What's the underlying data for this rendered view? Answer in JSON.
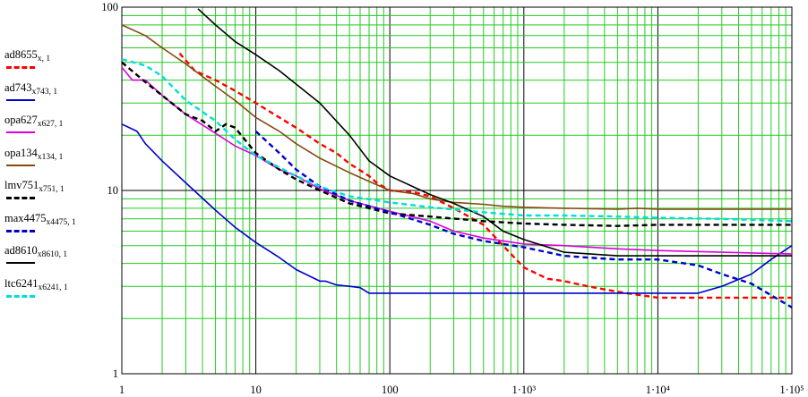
{
  "chart_data": {
    "type": "line",
    "x_scale": "log",
    "y_scale": "log",
    "xlim": [
      1,
      100000
    ],
    "ylim": [
      1,
      100
    ],
    "grid": true,
    "grid_color": "#22cc22",
    "legend_position": "left",
    "x_tick_labels": [
      {
        "value": 1,
        "label": "1"
      },
      {
        "value": 10,
        "label": "10"
      },
      {
        "value": 100,
        "label": "100"
      },
      {
        "value": 1000,
        "label": "1·10³"
      },
      {
        "value": 10000,
        "label": "1·10⁴"
      },
      {
        "value": 100000,
        "label": "1·10⁵"
      }
    ],
    "y_tick_labels": [
      {
        "value": 100,
        "label": "100"
      },
      {
        "value": 10,
        "label": "10"
      },
      {
        "value": 1,
        "label": "1"
      }
    ],
    "series": [
      {
        "name": "ad8655",
        "subscript": "x, 1",
        "color": "#ff0000",
        "dash": true,
        "x": [
          2.7,
          3.5,
          5,
          7,
          10,
          15,
          20,
          30,
          40,
          50,
          70,
          80,
          100,
          150,
          200,
          300,
          500,
          700,
          1000,
          1500,
          2000,
          3000,
          5000,
          7000,
          10000,
          20000,
          50000,
          100000
        ],
        "y": [
          56,
          45,
          40,
          35,
          30,
          25,
          22,
          18,
          16,
          14,
          12,
          11,
          10,
          9.8,
          9.3,
          8,
          6.5,
          5,
          3.8,
          3.3,
          3.2,
          3.0,
          2.8,
          2.7,
          2.6,
          2.6,
          2.6,
          2.6
        ]
      },
      {
        "name": "ad743",
        "subscript": "x743, 1",
        "color": "#0000cc",
        "dash": false,
        "x": [
          1,
          1.3,
          1.5,
          2,
          3,
          5,
          7,
          10,
          15,
          20,
          30,
          33,
          40,
          50,
          60,
          70,
          80,
          100,
          200,
          500,
          1000,
          3000,
          10000,
          20000,
          30000,
          50000,
          70000,
          100000
        ],
        "y": [
          23,
          21,
          18,
          14.5,
          11,
          7.8,
          6.3,
          5.2,
          4.3,
          3.7,
          3.2,
          3.2,
          3.05,
          3.0,
          2.95,
          2.75,
          2.75,
          2.75,
          2.75,
          2.75,
          2.75,
          2.75,
          2.75,
          2.75,
          3.0,
          3.5,
          4.2,
          5.0
        ]
      },
      {
        "name": "opa627",
        "subscript": "x627, 1",
        "color": "#dd00dd",
        "dash": false,
        "x": [
          1,
          1.2,
          1.5,
          2,
          3,
          5,
          7,
          10,
          15,
          20,
          30,
          50,
          100,
          200,
          300,
          500,
          1000,
          2000,
          5000,
          10000,
          30000,
          100000
        ],
        "y": [
          47,
          40,
          40,
          33,
          26,
          20.5,
          17.5,
          15.5,
          13,
          12,
          10.2,
          8.8,
          7.7,
          6.8,
          6.0,
          5.5,
          5.1,
          5.0,
          4.8,
          4.7,
          4.6,
          4.5
        ]
      },
      {
        "name": "opa134",
        "subscript": "x134, 1",
        "color": "#8b4513",
        "dash": false,
        "x": [
          1,
          1.5,
          2,
          3,
          5,
          7,
          10,
          15,
          20,
          30,
          50,
          70,
          100,
          150,
          200,
          300,
          500,
          700,
          1000,
          2000,
          5000,
          7000,
          10000,
          30000,
          100000
        ],
        "y": [
          80,
          70,
          60,
          49,
          37,
          31,
          25,
          21,
          18,
          15,
          12.5,
          11.2,
          10,
          9.6,
          9,
          8.6,
          8.4,
          8.2,
          8.1,
          8.0,
          7.9,
          8.0,
          7.9,
          7.9,
          7.9
        ]
      },
      {
        "name": "lmv751",
        "subscript": "x751, 1",
        "color": "#000000",
        "dash": true,
        "x": [
          1,
          1.5,
          2,
          3,
          4,
          5,
          6,
          7,
          10,
          15,
          20,
          30,
          50,
          100,
          200,
          500,
          1000,
          2000,
          5000,
          10000,
          30000,
          100000
        ],
        "y": [
          50,
          39,
          33,
          26,
          24,
          21,
          23,
          22,
          16,
          13,
          11.5,
          10,
          8.5,
          7.5,
          7.2,
          6.8,
          6.6,
          6.5,
          6.4,
          6.5,
          6.5,
          6.5
        ]
      },
      {
        "name": "max4475",
        "subscript": "x4475, 1",
        "color": "#0000cc",
        "dash": true,
        "x": [
          10,
          15,
          20,
          30,
          50,
          70,
          100,
          200,
          300,
          500,
          1000,
          2000,
          3000,
          5000,
          7000,
          10000,
          20000,
          30000,
          50000,
          100000
        ],
        "y": [
          21,
          16,
          13,
          10.5,
          8.8,
          8.2,
          7.6,
          6.5,
          5.8,
          5.3,
          4.9,
          4.4,
          4.3,
          4.2,
          4.2,
          4.2,
          3.9,
          3.5,
          3.1,
          2.3
        ]
      },
      {
        "name": "ad8610",
        "subscript": "x8610, 1",
        "color": "#000000",
        "dash": false,
        "x": [
          3.7,
          5,
          7,
          10,
          15,
          20,
          30,
          50,
          70,
          100,
          200,
          300,
          500,
          700,
          1000,
          2000,
          5000,
          10000,
          30000,
          100000
        ],
        "y": [
          98,
          80,
          65,
          55,
          45,
          38,
          30,
          20,
          14.5,
          12,
          9.5,
          8.5,
          7.2,
          6.0,
          5.4,
          4.6,
          4.4,
          4.4,
          4.4,
          4.4
        ]
      },
      {
        "name": "ltc6241",
        "subscript": "x6241, 1",
        "color": "#00dddd",
        "dash": true,
        "x": [
          1,
          1.5,
          2,
          3,
          5,
          7,
          10,
          20,
          30,
          50,
          100,
          200,
          500,
          1000,
          2000,
          5000,
          10000,
          30000,
          100000
        ],
        "y": [
          52,
          48,
          42,
          31,
          24,
          19,
          15.5,
          12,
          10.5,
          9.3,
          8.6,
          8.1,
          7.6,
          7.3,
          7.3,
          7.2,
          7.1,
          7.0,
          6.8
        ]
      }
    ]
  }
}
